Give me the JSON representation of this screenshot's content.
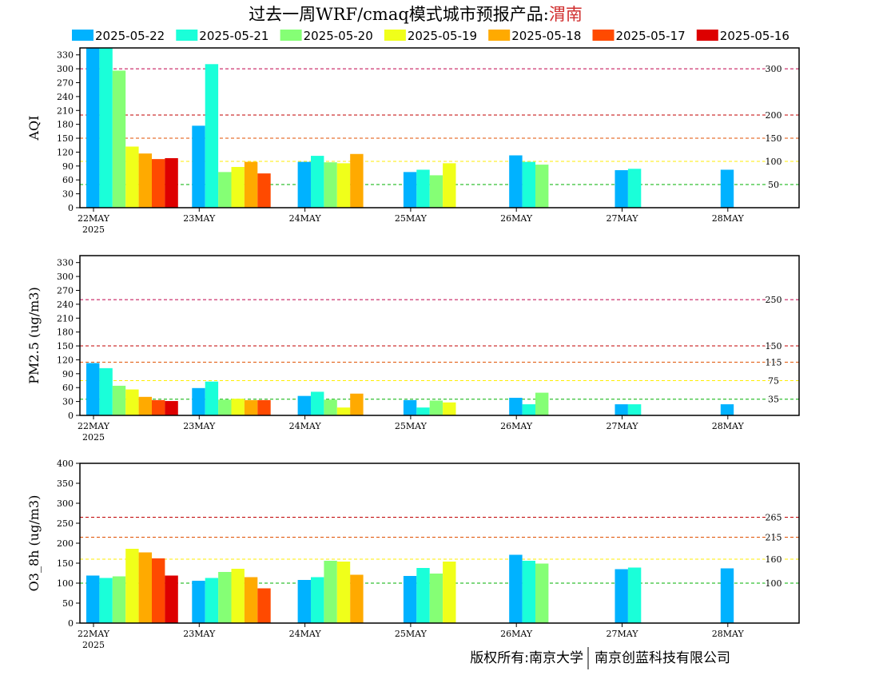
{
  "header": {
    "title_prefix": "过去一周WRF/cmaq模式城市预报产品:",
    "city": "渭南"
  },
  "legend": {
    "items": [
      {
        "label": "2025-05-22",
        "color": "#00b2ff"
      },
      {
        "label": "2025-05-21",
        "color": "#1affd9"
      },
      {
        "label": "2025-05-20",
        "color": "#85ff75"
      },
      {
        "label": "2025-05-19",
        "color": "#f0ff1a"
      },
      {
        "label": "2025-05-18",
        "color": "#ffaa00"
      },
      {
        "label": "2025-05-17",
        "color": "#ff4a00"
      },
      {
        "label": "2025-05-16",
        "color": "#dd0000"
      }
    ]
  },
  "footer": {
    "copyright_left": "版权所有:南京大学",
    "copyright_right": "南京创蓝科技有限公司"
  },
  "chart_data": [
    {
      "type": "bar",
      "ylabel": "AQI",
      "ylim": [
        0,
        345
      ],
      "yticks": [
        0,
        30,
        60,
        90,
        120,
        150,
        180,
        210,
        240,
        270,
        300,
        330
      ],
      "categories": [
        "22MAY",
        "23MAY",
        "24MAY",
        "25MAY",
        "26MAY",
        "27MAY",
        "28MAY"
      ],
      "first_category_year": "2025",
      "thresholds": [
        {
          "value": 300,
          "label": "300",
          "color": "#c0004a"
        },
        {
          "value": 200,
          "label": "200",
          "color": "#c00000"
        },
        {
          "value": 150,
          "label": "150",
          "color": "#e05000"
        },
        {
          "value": 100,
          "label": "100",
          "color": "#ffee00"
        },
        {
          "value": 50,
          "label": "50",
          "color": "#00b000"
        }
      ],
      "series": [
        {
          "name": "2025-05-22",
          "values": [
            345,
            177,
            99,
            77,
            113,
            81,
            82
          ]
        },
        {
          "name": "2025-05-21",
          "values": [
            345,
            310,
            112,
            82,
            99,
            84,
            null
          ]
        },
        {
          "name": "2025-05-20",
          "values": [
            296,
            77,
            98,
            70,
            93,
            null,
            null
          ]
        },
        {
          "name": "2025-05-19",
          "values": [
            132,
            88,
            96,
            96,
            null,
            null,
            null
          ]
        },
        {
          "name": "2025-05-18",
          "values": [
            117,
            99,
            116,
            null,
            null,
            null,
            null
          ]
        },
        {
          "name": "2025-05-17",
          "values": [
            105,
            74,
            null,
            null,
            null,
            null,
            null
          ]
        },
        {
          "name": "2025-05-16",
          "values": [
            107,
            null,
            null,
            null,
            null,
            null,
            null
          ]
        }
      ]
    },
    {
      "type": "bar",
      "ylabel": "PM2.5 (ug/m3)",
      "ylim": [
        0,
        345
      ],
      "yticks": [
        0,
        30,
        60,
        90,
        120,
        150,
        180,
        210,
        240,
        270,
        300,
        330
      ],
      "categories": [
        "22MAY",
        "23MAY",
        "24MAY",
        "25MAY",
        "26MAY",
        "27MAY",
        "28MAY"
      ],
      "first_category_year": "2025",
      "thresholds": [
        {
          "value": 250,
          "label": "250",
          "color": "#c0004a"
        },
        {
          "value": 150,
          "label": "150",
          "color": "#c00000"
        },
        {
          "value": 115,
          "label": "115",
          "color": "#e05000"
        },
        {
          "value": 75,
          "label": "75",
          "color": "#ffee00"
        },
        {
          "value": 35,
          "label": "35",
          "color": "#00b000"
        }
      ],
      "series": [
        {
          "name": "2025-05-22",
          "values": [
            113,
            59,
            42,
            33,
            38,
            24,
            24
          ]
        },
        {
          "name": "2025-05-21",
          "values": [
            102,
            73,
            51,
            17,
            24,
            24,
            null
          ]
        },
        {
          "name": "2025-05-20",
          "values": [
            64,
            34,
            34,
            32,
            49,
            null,
            null
          ]
        },
        {
          "name": "2025-05-19",
          "values": [
            56,
            36,
            17,
            28,
            null,
            null,
            null
          ]
        },
        {
          "name": "2025-05-18",
          "values": [
            40,
            33,
            47,
            null,
            null,
            null,
            null
          ]
        },
        {
          "name": "2025-05-17",
          "values": [
            33,
            33,
            null,
            null,
            null,
            null,
            null
          ]
        },
        {
          "name": "2025-05-16",
          "values": [
            31,
            null,
            null,
            null,
            null,
            null,
            null
          ]
        }
      ]
    },
    {
      "type": "bar",
      "ylabel": "O3_8h (ug/m3)",
      "ylim": [
        0,
        400
      ],
      "yticks": [
        0,
        50,
        100,
        150,
        200,
        250,
        300,
        350,
        400
      ],
      "categories": [
        "22MAY",
        "23MAY",
        "24MAY",
        "25MAY",
        "26MAY",
        "27MAY",
        "28MAY"
      ],
      "first_category_year": "2025",
      "thresholds": [
        {
          "value": 265,
          "label": "265",
          "color": "#c00000"
        },
        {
          "value": 215,
          "label": "215",
          "color": "#e05000"
        },
        {
          "value": 160,
          "label": "160",
          "color": "#ffee00"
        },
        {
          "value": 100,
          "label": "100",
          "color": "#00b000"
        }
      ],
      "series": [
        {
          "name": "2025-05-22",
          "values": [
            119,
            106,
            108,
            118,
            171,
            135,
            137
          ]
        },
        {
          "name": "2025-05-21",
          "values": [
            113,
            113,
            115,
            138,
            156,
            139,
            null
          ]
        },
        {
          "name": "2025-05-20",
          "values": [
            117,
            128,
            156,
            124,
            149,
            null,
            null
          ]
        },
        {
          "name": "2025-05-19",
          "values": [
            186,
            136,
            154,
            154,
            null,
            null,
            null
          ]
        },
        {
          "name": "2025-05-18",
          "values": [
            177,
            115,
            121,
            null,
            null,
            null,
            null
          ]
        },
        {
          "name": "2025-05-17",
          "values": [
            162,
            87,
            null,
            null,
            null,
            null,
            null
          ]
        },
        {
          "name": "2025-05-16",
          "values": [
            119,
            null,
            null,
            null,
            null,
            null,
            null
          ]
        }
      ]
    }
  ]
}
